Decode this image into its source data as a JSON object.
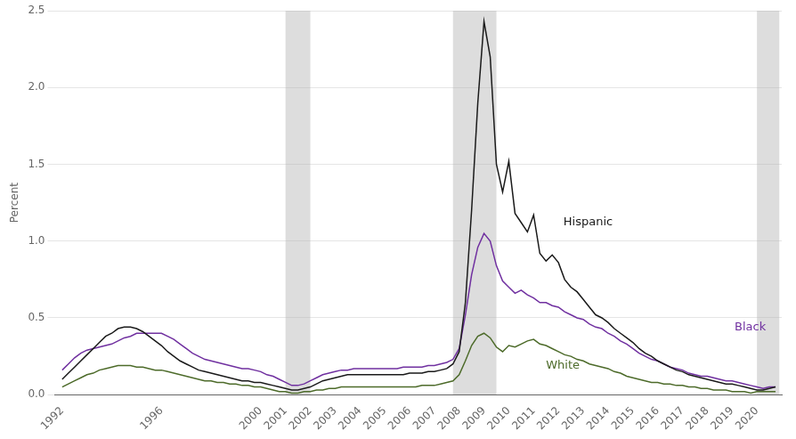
{
  "chart_data": {
    "type": "line",
    "ylabel": "Percent",
    "xlim": [
      1991.7,
      2021.0
    ],
    "xticks": [
      1992,
      1996,
      2000,
      2001,
      2002,
      2003,
      2004,
      2005,
      2006,
      2007,
      2008,
      2009,
      2010,
      2011,
      2012,
      2013,
      2014,
      2015,
      2016,
      2017,
      2018,
      2019,
      2020
    ],
    "ylim": [
      0.0,
      2.5
    ],
    "yticks": [
      {
        "value": 0.0,
        "label": "0.0"
      },
      0.5,
      {
        "value": 1.0,
        "label": "1.0"
      },
      1.5,
      {
        "value": 2.0,
        "label": "2.0"
      },
      2.5
    ],
    "grid": "y",
    "bands": [
      [
        2001.0,
        2002.0
      ],
      [
        2007.75,
        2009.5
      ],
      [
        2020.0,
        2020.9
      ]
    ],
    "annotations": [
      {
        "text": "Hispanic",
        "x": 2012.2,
        "y": 1.12,
        "color": "#1a1a1a"
      },
      {
        "text": "Black",
        "x": 2019.1,
        "y": 0.44,
        "color": "#7030a0"
      },
      {
        "text": "White",
        "x": 2011.5,
        "y": 0.19,
        "color": "#4d6b2a"
      }
    ],
    "x": [
      1992.0,
      1992.25,
      1992.5,
      1992.75,
      1993.0,
      1993.25,
      1993.5,
      1993.75,
      1994.0,
      1994.25,
      1994.5,
      1994.75,
      1995.0,
      1995.25,
      1995.5,
      1995.75,
      1996.0,
      1996.25,
      1996.5,
      1996.75,
      1997.0,
      1997.25,
      1997.5,
      1997.75,
      1998.0,
      1998.25,
      1998.5,
      1998.75,
      1999.0,
      1999.25,
      1999.5,
      1999.75,
      2000.0,
      2000.25,
      2000.5,
      2000.75,
      2001.0,
      2001.25,
      2001.5,
      2001.75,
      2002.0,
      2002.25,
      2002.5,
      2002.75,
      2003.0,
      2003.25,
      2003.5,
      2003.75,
      2004.0,
      2004.25,
      2004.5,
      2004.75,
      2005.0,
      2005.25,
      2005.5,
      2005.75,
      2006.0,
      2006.25,
      2006.5,
      2006.75,
      2007.0,
      2007.25,
      2007.5,
      2007.75,
      2008.0,
      2008.25,
      2008.5,
      2008.75,
      2009.0,
      2009.25,
      2009.5,
      2009.75,
      2010.0,
      2010.25,
      2010.5,
      2010.75,
      2011.0,
      2011.25,
      2011.5,
      2011.75,
      2012.0,
      2012.25,
      2012.5,
      2012.75,
      2013.0,
      2013.25,
      2013.5,
      2013.75,
      2014.0,
      2014.25,
      2014.5,
      2014.75,
      2015.0,
      2015.25,
      2015.5,
      2015.75,
      2016.0,
      2016.25,
      2016.5,
      2016.75,
      2017.0,
      2017.25,
      2017.5,
      2017.75,
      2018.0,
      2018.25,
      2018.5,
      2018.75,
      2019.0,
      2019.25,
      2019.5,
      2019.75,
      2020.0,
      2020.25,
      2020.5,
      2020.75
    ],
    "series": [
      {
        "name": "Hispanic",
        "color": "#1a1a1a",
        "values": [
          0.1,
          0.14,
          0.18,
          0.22,
          0.26,
          0.3,
          0.34,
          0.38,
          0.4,
          0.43,
          0.44,
          0.44,
          0.43,
          0.41,
          0.38,
          0.35,
          0.32,
          0.28,
          0.25,
          0.22,
          0.2,
          0.18,
          0.16,
          0.15,
          0.14,
          0.13,
          0.12,
          0.11,
          0.1,
          0.09,
          0.09,
          0.08,
          0.08,
          0.07,
          0.06,
          0.05,
          0.04,
          0.03,
          0.03,
          0.04,
          0.05,
          0.07,
          0.09,
          0.1,
          0.11,
          0.12,
          0.13,
          0.13,
          0.13,
          0.13,
          0.13,
          0.13,
          0.13,
          0.13,
          0.13,
          0.13,
          0.14,
          0.14,
          0.14,
          0.15,
          0.15,
          0.16,
          0.17,
          0.2,
          0.28,
          0.6,
          1.2,
          1.9,
          2.43,
          2.2,
          1.5,
          1.32,
          1.52,
          1.18,
          1.12,
          1.06,
          1.17,
          0.92,
          0.87,
          0.91,
          0.86,
          0.75,
          0.7,
          0.67,
          0.62,
          0.57,
          0.52,
          0.5,
          0.47,
          0.43,
          0.4,
          0.37,
          0.34,
          0.3,
          0.27,
          0.25,
          0.22,
          0.2,
          0.18,
          0.16,
          0.15,
          0.13,
          0.12,
          0.11,
          0.1,
          0.09,
          0.08,
          0.07,
          0.07,
          0.06,
          0.05,
          0.04,
          0.03,
          0.03,
          0.04,
          0.05
        ]
      },
      {
        "name": "Black",
        "color": "#7030a0",
        "values": [
          0.16,
          0.2,
          0.24,
          0.27,
          0.29,
          0.3,
          0.31,
          0.32,
          0.33,
          0.35,
          0.37,
          0.38,
          0.4,
          0.4,
          0.4,
          0.4,
          0.4,
          0.38,
          0.36,
          0.33,
          0.3,
          0.27,
          0.25,
          0.23,
          0.22,
          0.21,
          0.2,
          0.19,
          0.18,
          0.17,
          0.17,
          0.16,
          0.15,
          0.13,
          0.12,
          0.1,
          0.08,
          0.06,
          0.06,
          0.07,
          0.09,
          0.11,
          0.13,
          0.14,
          0.15,
          0.16,
          0.16,
          0.17,
          0.17,
          0.17,
          0.17,
          0.17,
          0.17,
          0.17,
          0.17,
          0.18,
          0.18,
          0.18,
          0.18,
          0.19,
          0.19,
          0.2,
          0.21,
          0.23,
          0.3,
          0.52,
          0.78,
          0.96,
          1.05,
          1.0,
          0.84,
          0.74,
          0.7,
          0.66,
          0.68,
          0.65,
          0.63,
          0.6,
          0.6,
          0.58,
          0.57,
          0.54,
          0.52,
          0.5,
          0.49,
          0.46,
          0.44,
          0.43,
          0.4,
          0.38,
          0.35,
          0.33,
          0.3,
          0.27,
          0.25,
          0.23,
          0.22,
          0.2,
          0.18,
          0.17,
          0.16,
          0.14,
          0.13,
          0.12,
          0.12,
          0.11,
          0.1,
          0.09,
          0.09,
          0.08,
          0.07,
          0.06,
          0.05,
          0.04,
          0.05,
          0.05
        ]
      },
      {
        "name": "White",
        "color": "#4d6b2a",
        "values": [
          0.05,
          0.07,
          0.09,
          0.11,
          0.13,
          0.14,
          0.16,
          0.17,
          0.18,
          0.19,
          0.19,
          0.19,
          0.18,
          0.18,
          0.17,
          0.16,
          0.16,
          0.15,
          0.14,
          0.13,
          0.12,
          0.11,
          0.1,
          0.09,
          0.09,
          0.08,
          0.08,
          0.07,
          0.07,
          0.06,
          0.06,
          0.05,
          0.05,
          0.04,
          0.03,
          0.02,
          0.02,
          0.01,
          0.01,
          0.02,
          0.02,
          0.03,
          0.03,
          0.04,
          0.04,
          0.05,
          0.05,
          0.05,
          0.05,
          0.05,
          0.05,
          0.05,
          0.05,
          0.05,
          0.05,
          0.05,
          0.05,
          0.05,
          0.06,
          0.06,
          0.06,
          0.07,
          0.08,
          0.09,
          0.13,
          0.22,
          0.32,
          0.38,
          0.4,
          0.37,
          0.31,
          0.28,
          0.32,
          0.31,
          0.33,
          0.35,
          0.36,
          0.33,
          0.32,
          0.3,
          0.28,
          0.26,
          0.25,
          0.23,
          0.22,
          0.2,
          0.19,
          0.18,
          0.17,
          0.15,
          0.14,
          0.12,
          0.11,
          0.1,
          0.09,
          0.08,
          0.08,
          0.07,
          0.07,
          0.06,
          0.06,
          0.05,
          0.05,
          0.04,
          0.04,
          0.03,
          0.03,
          0.03,
          0.02,
          0.02,
          0.02,
          0.01,
          0.02,
          0.02,
          0.02,
          0.02
        ]
      }
    ]
  }
}
